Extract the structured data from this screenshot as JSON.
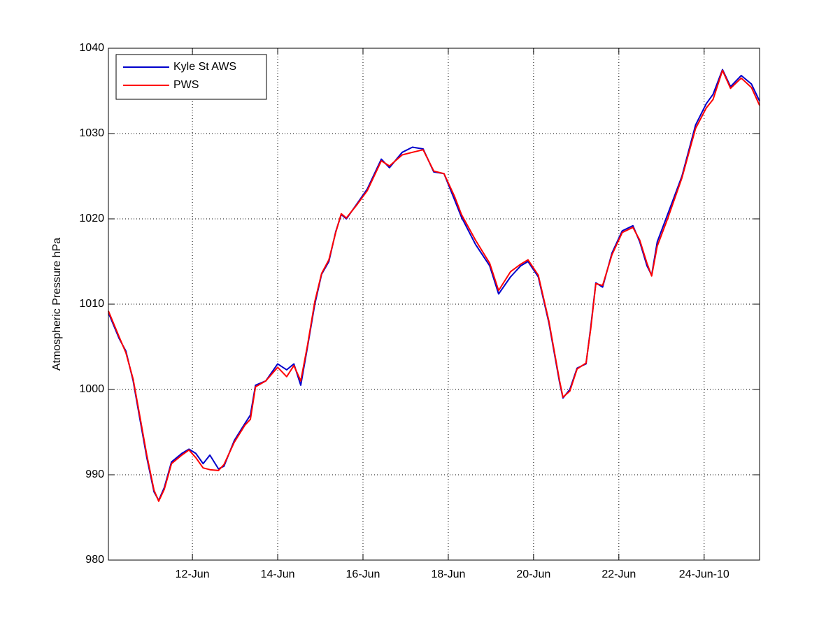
{
  "chart_data": {
    "type": "line",
    "ylabel": "Atmospheric Pressure hPa",
    "x": [
      10.03,
      10.28,
      10.44,
      10.61,
      10.77,
      10.93,
      11.1,
      11.21,
      11.34,
      11.51,
      11.75,
      11.92,
      12.08,
      12.25,
      12.41,
      12.61,
      12.74,
      12.98,
      13.23,
      13.36,
      13.48,
      13.72,
      14.0,
      14.21,
      14.38,
      14.54,
      14.7,
      14.87,
      15.03,
      15.2,
      15.36,
      15.49,
      15.61,
      15.85,
      16.1,
      16.43,
      16.62,
      16.92,
      17.16,
      17.41,
      17.66,
      17.9,
      18.15,
      18.31,
      18.64,
      18.97,
      19.18,
      19.46,
      19.7,
      19.87,
      20.11,
      20.36,
      20.61,
      20.69,
      20.85,
      21.02,
      21.23,
      21.34,
      21.46,
      21.62,
      21.84,
      22.08,
      22.33,
      22.49,
      22.66,
      22.77,
      22.9,
      23.15,
      23.48,
      23.8,
      24.05,
      24.21,
      24.43,
      24.62,
      24.87,
      25.11,
      25.3
    ],
    "series": [
      {
        "name": "Kyle St AWS",
        "color": "#0000cc",
        "values": [
          1009,
          1006,
          1004.5,
          1001,
          996.5,
          992,
          988,
          987,
          988.5,
          991.5,
          992.5,
          993,
          992.5,
          991.3,
          992.3,
          990.7,
          991,
          994,
          996,
          997,
          1000.5,
          1001,
          1003,
          1002.3,
          1003,
          1000.5,
          1005,
          1010,
          1013.5,
          1015,
          1018.5,
          1020.5,
          1020,
          1021.7,
          1023.5,
          1027,
          1026,
          1027.8,
          1028.4,
          1028.2,
          1025.5,
          1025.3,
          1022.2,
          1020.2,
          1017,
          1014.5,
          1011.2,
          1013.2,
          1014.5,
          1015,
          1013.2,
          1007.8,
          1000.8,
          999,
          1000,
          1002.5,
          1003,
          1007.3,
          1012.5,
          1012,
          1016,
          1018.6,
          1019.2,
          1017.3,
          1014.5,
          1013.4,
          1017.3,
          1020.6,
          1025,
          1031,
          1033.5,
          1034.6,
          1037.5,
          1035.5,
          1036.8,
          1035.8,
          1033.8
        ]
      },
      {
        "name": "PWS",
        "color": "#ff0000",
        "values": [
          1009.2,
          1006.2,
          1004.3,
          1001.2,
          996.8,
          992.3,
          988.2,
          986.9,
          988.3,
          991.3,
          992.3,
          992.9,
          992,
          990.8,
          990.6,
          990.5,
          991.2,
          993.8,
          995.8,
          996.5,
          1000.3,
          1001,
          1002.6,
          1001.5,
          1002.8,
          1001,
          1005.2,
          1010.3,
          1013.6,
          1015.2,
          1018.4,
          1020.6,
          1020.1,
          1021.6,
          1023.3,
          1026.8,
          1026.2,
          1027.5,
          1027.8,
          1028.1,
          1025.6,
          1025.3,
          1022.6,
          1020.5,
          1017.5,
          1014.8,
          1011.6,
          1013.8,
          1014.7,
          1015.2,
          1013.4,
          1008,
          1001,
          999.1,
          999.8,
          1002.4,
          1003.1,
          1007.1,
          1012.4,
          1012.2,
          1015.8,
          1018.4,
          1019,
          1017.5,
          1014.8,
          1013.3,
          1016.8,
          1020.1,
          1024.8,
          1030.6,
          1033,
          1034,
          1037.4,
          1035.3,
          1036.5,
          1035.4,
          1033.3
        ]
      }
    ],
    "xlim": [
      10.03,
      25.3
    ],
    "ylim": [
      980,
      1040
    ],
    "xticks": [
      {
        "value": 12,
        "label": "12-Jun"
      },
      {
        "value": 14,
        "label": "14-Jun"
      },
      {
        "value": 16,
        "label": "16-Jun"
      },
      {
        "value": 18,
        "label": "18-Jun"
      },
      {
        "value": 20,
        "label": "20-Jun"
      },
      {
        "value": 22,
        "label": "22-Jun"
      },
      {
        "value": 24,
        "label": "24-Jun-10"
      }
    ],
    "yticks": [
      980,
      990,
      1000,
      1010,
      1020,
      1030,
      1040
    ],
    "grid": true,
    "legend": "upper left"
  }
}
